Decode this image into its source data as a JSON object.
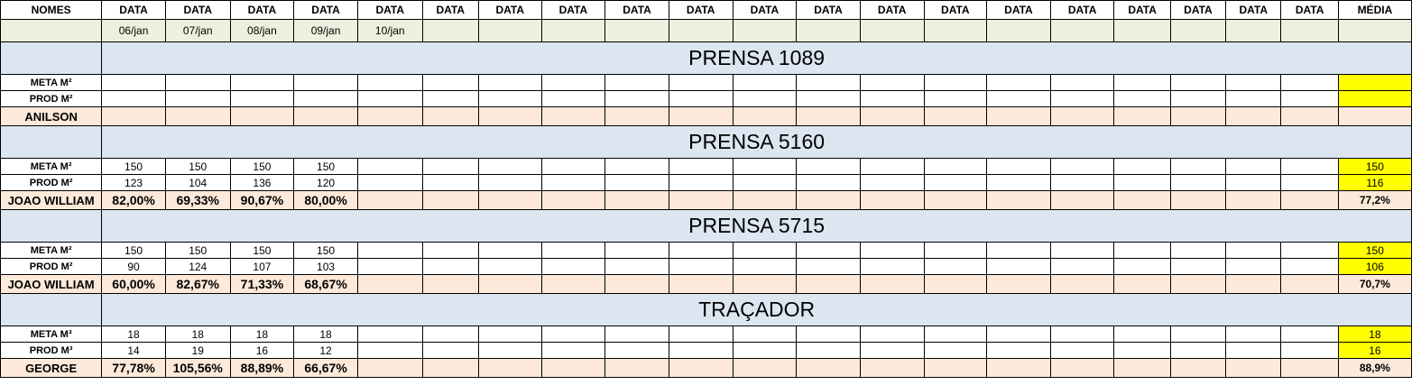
{
  "header": {
    "names_label": "NOMES",
    "data_label": "DATA",
    "avg_label": "MÉDIA",
    "dates": [
      "06/jan",
      "07/jan",
      "08/jan",
      "09/jan",
      "10/jan"
    ]
  },
  "sections": [
    {
      "title": "PRENSA 1089",
      "meta_label": "META M²",
      "prod_label": "PROD M²",
      "operator": "ANILSON",
      "meta": [],
      "prod": [],
      "pct": [],
      "meta_avg": "",
      "prod_avg": "",
      "pct_avg": ""
    },
    {
      "title": "PRENSA 5160",
      "meta_label": "META M²",
      "prod_label": "PROD M²",
      "operator": "JOAO WILLIAM",
      "meta": [
        "150",
        "150",
        "150",
        "150"
      ],
      "prod": [
        "123",
        "104",
        "136",
        "120"
      ],
      "pct": [
        "82,00%",
        "69,33%",
        "90,67%",
        "80,00%"
      ],
      "meta_avg": "150",
      "prod_avg": "116",
      "pct_avg": "77,2%"
    },
    {
      "title": "PRENSA 5715",
      "meta_label": "META M²",
      "prod_label": "PROD M²",
      "operator": "JOAO WILLIAM",
      "meta": [
        "150",
        "150",
        "150",
        "150"
      ],
      "prod": [
        "90",
        "124",
        "107",
        "103"
      ],
      "pct": [
        "60,00%",
        "82,67%",
        "71,33%",
        "68,67%"
      ],
      "meta_avg": "150",
      "prod_avg": "106",
      "pct_avg": "70,7%"
    },
    {
      "title": "TRAÇADOR",
      "meta_label": "META M³",
      "prod_label": "PROD M³",
      "operator": "GEORGE",
      "meta": [
        "18",
        "18",
        "18",
        "18"
      ],
      "prod": [
        "14",
        "19",
        "16",
        "12"
      ],
      "pct": [
        "77,78%",
        "105,56%",
        "88,89%",
        "66,67%"
      ],
      "meta_avg": "18",
      "prod_avg": "16",
      "pct_avg": "88,9%"
    }
  ],
  "colors": {
    "date_row": "#ebf1de",
    "section_title": "#dce6f1",
    "operator_row": "#fde9d9",
    "average_highlight": "#ffff00"
  }
}
